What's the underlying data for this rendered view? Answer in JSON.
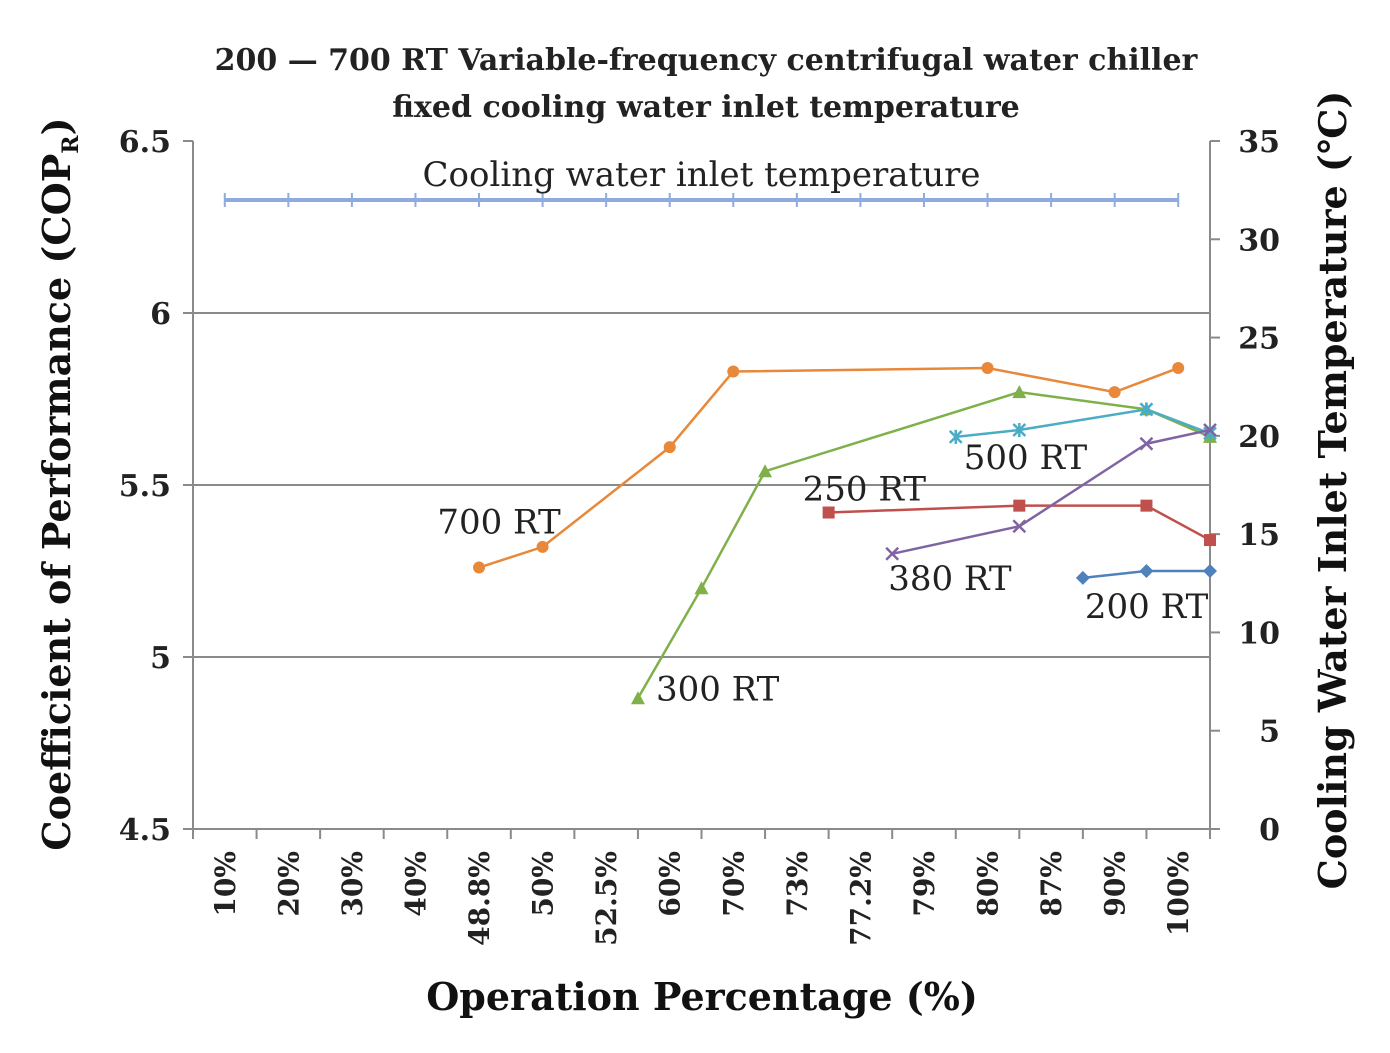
{
  "chart_data": {
    "type": "line",
    "title": [
      "200 — 700 RT Variable-frequency centrifugal water chiller",
      "fixed cooling water inlet temperature"
    ],
    "xlabel": "Operation Percentage (%)",
    "ylabel": "Coefficient of Performance (COP",
    "ylabel_sub": "R",
    "ylabel_close": ")",
    "y2label": "Cooling Water Inlet Temperature (℃)",
    "categories": [
      "10%",
      "20%",
      "30%",
      "40%",
      "48.8%",
      "50%",
      "52.5%",
      "60%",
      "70%",
      "73%",
      "77.2%",
      "79%",
      "80%",
      "87%",
      "90%",
      "100%"
    ],
    "ylim": [
      4.5,
      6.5
    ],
    "y_ticks": [
      "4.5",
      "5",
      "5.5",
      "6",
      "6.5"
    ],
    "y_tick_values": [
      4.5,
      5,
      5.5,
      6,
      6.5
    ],
    "y2lim": [
      0,
      35
    ],
    "y2_ticks": [
      "0",
      "5",
      "10",
      "15",
      "20",
      "25",
      "30",
      "35"
    ],
    "y2_tick_values": [
      0,
      5,
      10,
      15,
      20,
      25,
      30,
      35
    ],
    "gridlines": [
      5,
      5.5,
      6
    ],
    "series": [
      {
        "name": "Cooling water inlet temperature",
        "axis": "right",
        "color": "#8faadc",
        "marker": "plus",
        "points": [
          [
            0,
            32
          ],
          [
            1,
            32
          ],
          [
            2,
            32
          ],
          [
            3,
            32
          ],
          [
            4,
            32
          ],
          [
            5,
            32
          ],
          [
            6,
            32
          ],
          [
            7,
            32
          ],
          [
            8,
            32
          ],
          [
            9,
            32
          ],
          [
            10,
            32
          ],
          [
            11,
            32
          ],
          [
            12,
            32
          ],
          [
            13,
            32
          ],
          [
            14,
            32
          ],
          [
            15,
            32
          ]
        ]
      },
      {
        "name": "700 RT",
        "axis": "left",
        "color": "#e8883a",
        "marker": "circle",
        "points": [
          [
            4,
            5.26
          ],
          [
            5,
            5.32
          ],
          [
            7,
            5.61
          ],
          [
            8,
            5.83
          ],
          [
            12,
            5.84
          ],
          [
            14,
            5.77
          ],
          [
            15,
            5.84
          ]
        ]
      },
      {
        "name": "300 RT",
        "axis": "left",
        "color": "#7fb04a",
        "marker": "triangle",
        "points": [
          [
            6.5,
            4.88
          ],
          [
            7.5,
            5.2
          ],
          [
            8.5,
            5.54
          ],
          [
            12.5,
            5.77
          ],
          [
            14.5,
            5.72
          ],
          [
            15.5,
            5.64
          ]
        ]
      },
      {
        "name": "500 RT",
        "axis": "left",
        "color": "#4bacc6",
        "marker": "star",
        "points": [
          [
            11.5,
            5.64
          ],
          [
            12.5,
            5.66
          ],
          [
            14.5,
            5.72
          ],
          [
            15.5,
            5.65
          ]
        ]
      },
      {
        "name": "250 RT",
        "axis": "left",
        "color": "#c0504d",
        "marker": "square",
        "points": [
          [
            9.5,
            5.42
          ],
          [
            12.5,
            5.44
          ],
          [
            14.5,
            5.44
          ],
          [
            15.5,
            5.34
          ]
        ]
      },
      {
        "name": "380 RT",
        "axis": "left",
        "color": "#8064a2",
        "marker": "x",
        "points": [
          [
            10.5,
            5.3
          ],
          [
            12.5,
            5.38
          ],
          [
            14.5,
            5.62
          ],
          [
            15.5,
            5.66
          ]
        ]
      },
      {
        "name": "200 RT",
        "axis": "left",
        "color": "#4f81bd",
        "marker": "diamond",
        "points": [
          [
            13.5,
            5.23
          ],
          [
            14.5,
            5.25
          ],
          [
            15.5,
            5.25
          ]
        ]
      }
    ],
    "annotations": [
      {
        "text": "Cooling water inlet temperature",
        "series": 0
      },
      {
        "text": "700 RT",
        "series": 1
      },
      {
        "text": "300 RT",
        "series": 2
      },
      {
        "text": "500 RT",
        "series": 3
      },
      {
        "text": "250 RT",
        "series": 4
      },
      {
        "text": "380 RT",
        "series": 5
      },
      {
        "text": "200 RT",
        "series": 6
      }
    ]
  }
}
